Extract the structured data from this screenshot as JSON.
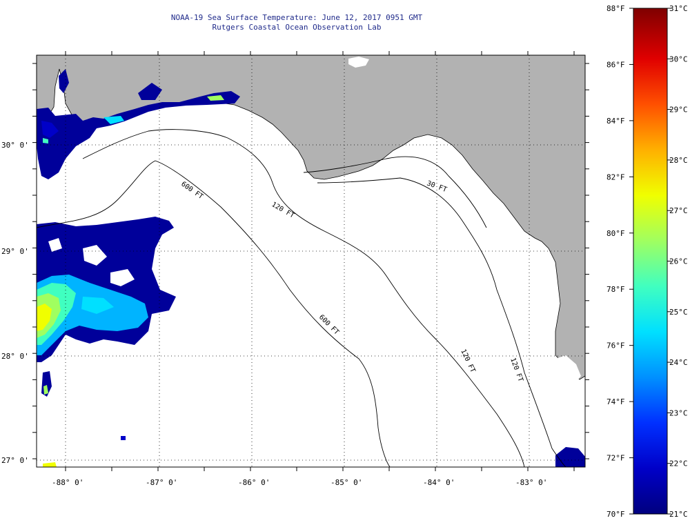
{
  "title": {
    "line1": "NOAA-19 Sea Surface Temperature:  June 12, 2017 0951 GMT",
    "line2": "Rutgers Coastal Ocean Observation Lab"
  },
  "latitude_labels": [
    "30° 0'",
    "29° 0'",
    "28° 0'",
    "27° 0'"
  ],
  "longitude_labels": [
    "-88° 0'",
    "-87° 0'",
    "-86° 0'",
    "-85° 0'",
    "-84° 0'",
    "-83° 0'"
  ],
  "isobath_labels": [
    "600 FT",
    "120 FT",
    "600 FT",
    "120 FT",
    "120 FT",
    "30 FT"
  ],
  "colorbar": {
    "fahrenheit_labels": [
      "88°F",
      "86°F",
      "84°F",
      "82°F",
      "80°F",
      "78°F",
      "76°F",
      "74°F",
      "72°F",
      "70°F"
    ],
    "celsius_labels": [
      "31°C",
      "30°C",
      "29°C",
      "28°C",
      "27°C",
      "26°C",
      "25°C",
      "24°C",
      "23°C",
      "22°C",
      "21°C"
    ],
    "colors": [
      "#00007f",
      "#0000c8",
      "#0030ff",
      "#0090ff",
      "#00e0ff",
      "#40ffc0",
      "#a0ff60",
      "#f0ff00",
      "#ffb000",
      "#ff5000",
      "#e00000",
      "#7f0000"
    ]
  },
  "colors": {
    "land": "#b2b2b2",
    "title_text": "#1f2a8a"
  }
}
